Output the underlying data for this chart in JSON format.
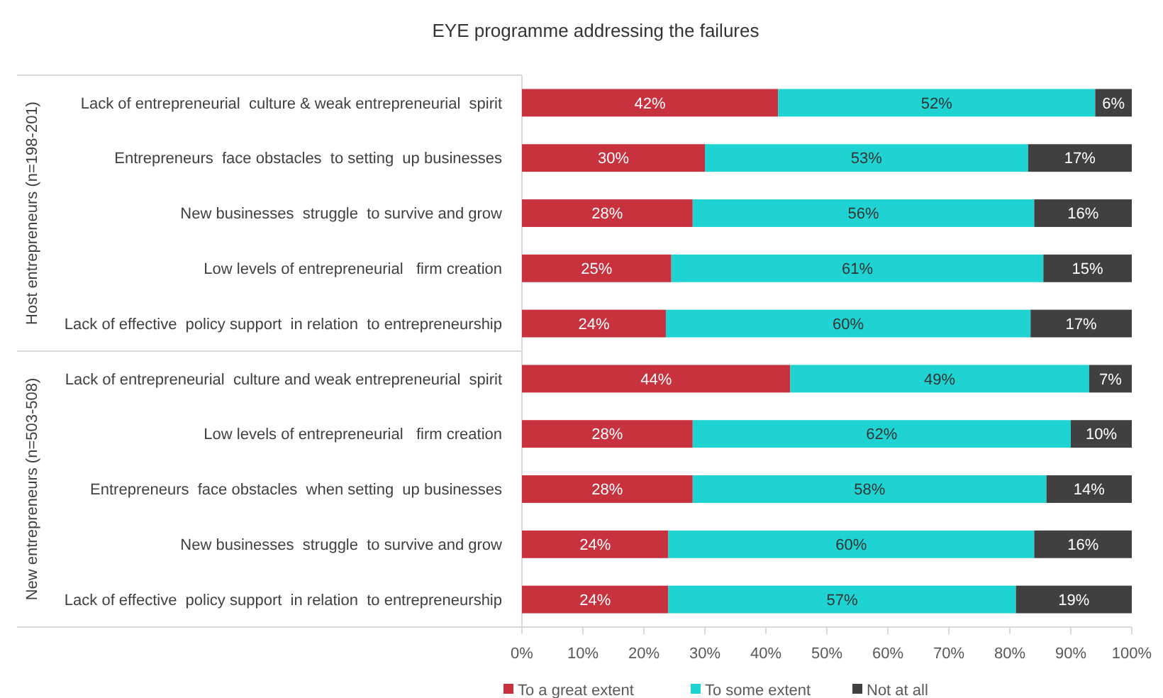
{
  "chart_data": {
    "type": "bar",
    "orientation": "horizontal",
    "stacked": true,
    "title": "EYE programme addressing the failures",
    "categories": [
      "Lack of entrepreneurial  culture & weak entrepreneurial  spirit",
      "Entrepreneurs  face obstacles  to setting  up businesses",
      "New businesses  struggle  to survive and grow",
      "Low levels of entrepreneurial   firm creation",
      "Lack of effective  policy support  in relation  to entrepreneurship",
      "Lack of entrepreneurial  culture and weak entrepreneurial  spirit",
      "Low levels of entrepreneurial   firm creation",
      "Entrepreneurs  face obstacles  when setting  up businesses",
      "New businesses  struggle  to survive and grow",
      "Lack of effective  policy support  in relation  to entrepreneurship"
    ],
    "series": [
      {
        "name": "To a great extent",
        "color": "#c8313e",
        "values": [
          42,
          30,
          28,
          24.5,
          23.6,
          44,
          28,
          28,
          24,
          24
        ],
        "value_labels": [
          "42%",
          "30%",
          "28%",
          "25%",
          "24%",
          "44%",
          "28%",
          "28%",
          "24%",
          "24%"
        ]
      },
      {
        "name": "To some extent",
        "color": "#1fd3d3",
        "values": [
          52,
          53,
          56,
          61,
          59.8,
          49,
          62,
          58,
          60,
          57
        ],
        "value_labels": [
          "52%",
          "53%",
          "56%",
          "61%",
          "60%",
          "49%",
          "62%",
          "58%",
          "60%",
          "57%"
        ]
      },
      {
        "name": "Not at all",
        "color": "#404040",
        "values": [
          6,
          17,
          16,
          14.5,
          16.6,
          7,
          10,
          14,
          16,
          19
        ],
        "value_labels": [
          "6%",
          "17%",
          "16%",
          "15%",
          "17%",
          "7%",
          "10%",
          "14%",
          "16%",
          "19%"
        ]
      }
    ],
    "xlim": [
      0,
      100
    ],
    "xticks": [
      {
        "value": 0,
        "label": "0%"
      },
      {
        "value": 10,
        "label": "10%"
      },
      {
        "value": 20,
        "label": "20%"
      },
      {
        "value": 30,
        "label": "30%"
      },
      {
        "value": 40,
        "label": "40%"
      },
      {
        "value": 50,
        "label": "50%"
      },
      {
        "value": 60,
        "label": "60%"
      },
      {
        "value": 70,
        "label": "70%"
      },
      {
        "value": 80,
        "label": "80%"
      },
      {
        "value": 90,
        "label": "90%"
      },
      {
        "value": 100,
        "label": "100%"
      }
    ],
    "annotations": [
      "Host entrepreneurs  (n=198-201)",
      "New entrepreneurs  (n=503-508)"
    ],
    "legend": "bottom",
    "grid": false
  }
}
